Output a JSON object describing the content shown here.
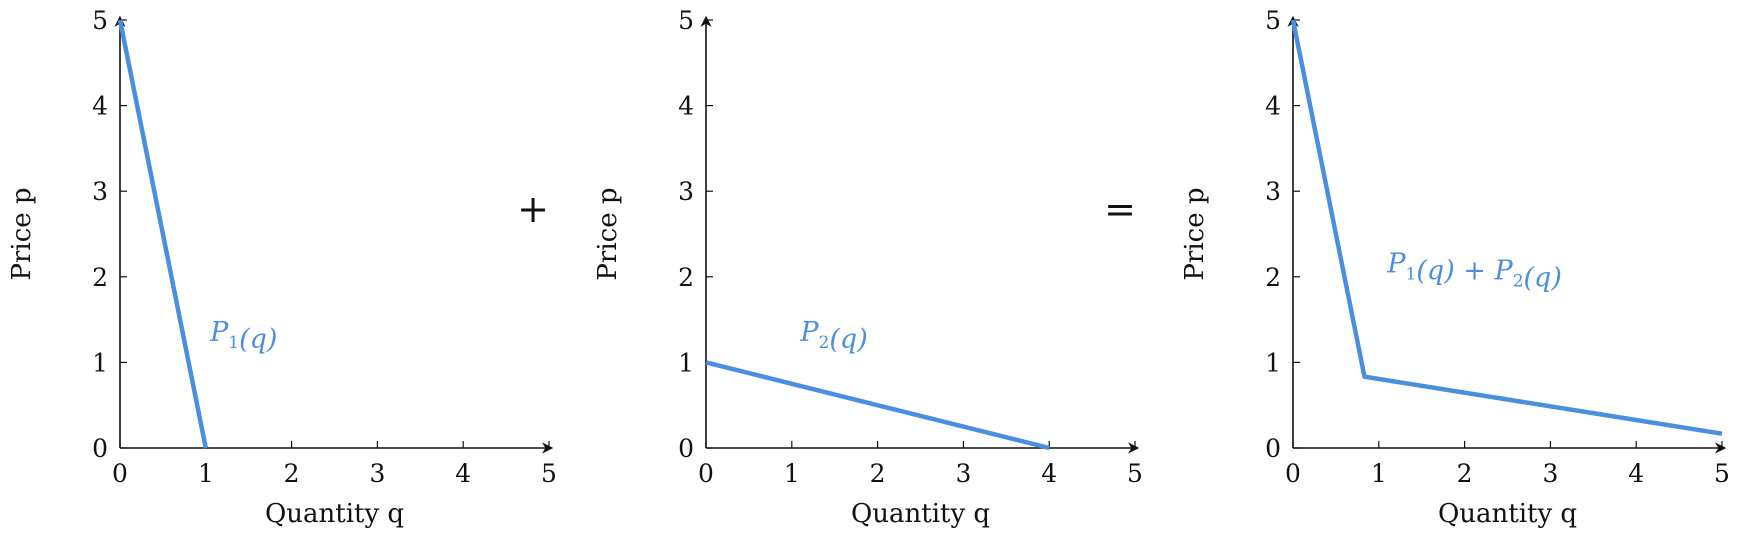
{
  "chart_data": [
    {
      "type": "line",
      "title": "",
      "xlabel": "Quantity q",
      "ylabel": "Price p",
      "xlim": [
        0,
        5
      ],
      "ylim": [
        0,
        5
      ],
      "xticks": [
        "0",
        "1",
        "2",
        "3",
        "4",
        "5"
      ],
      "yticks": [
        "0",
        "1",
        "2",
        "3",
        "4",
        "5"
      ],
      "grid": false,
      "series": [
        {
          "name": "P1(q)",
          "x": [
            0,
            1
          ],
          "y": [
            5,
            0
          ]
        }
      ]
    },
    {
      "type": "line",
      "title": "",
      "xlabel": "Quantity q",
      "ylabel": "Price p",
      "xlim": [
        0,
        5
      ],
      "ylim": [
        0,
        5
      ],
      "xticks": [
        "0",
        "1",
        "2",
        "3",
        "4",
        "5"
      ],
      "yticks": [
        "0",
        "1",
        "2",
        "3",
        "4",
        "5"
      ],
      "grid": false,
      "series": [
        {
          "name": "P2(q)",
          "x": [
            0,
            4
          ],
          "y": [
            1,
            0
          ]
        }
      ]
    },
    {
      "type": "line",
      "title": "",
      "xlabel": "Quantity q",
      "ylabel": "Price p",
      "xlim": [
        0,
        5
      ],
      "ylim": [
        0,
        5
      ],
      "xticks": [
        "0",
        "1",
        "2",
        "3",
        "4",
        "5"
      ],
      "yticks": [
        "0",
        "1",
        "2",
        "3",
        "4",
        "5"
      ],
      "grid": false,
      "series": [
        {
          "name": "P1(q) + P2(q)",
          "x": [
            0,
            0.833,
            5
          ],
          "y": [
            5,
            0.833,
            0.167
          ]
        }
      ]
    }
  ],
  "operators": [
    "+",
    "="
  ],
  "colors": {
    "curve": "#4a8ee0",
    "axis": "#111111"
  }
}
